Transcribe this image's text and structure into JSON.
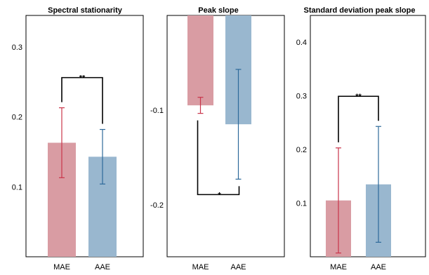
{
  "colors": {
    "MAE": "#d99ca3",
    "AAE": "#99b7cf",
    "MAE_err": "#c9344a",
    "AAE_err": "#2e6a9a"
  },
  "chart_data": [
    {
      "type": "bar",
      "title": "Spectral stationarity",
      "categories": [
        "MAE",
        "AAE"
      ],
      "values": [
        0.163,
        0.143
      ],
      "error": [
        0.05,
        0.039
      ],
      "ylim": [
        0,
        0.345
      ],
      "yticks": [
        0.1,
        0.2,
        0.3
      ],
      "ytick_labels": [
        "0.1",
        "0.2",
        "0.3"
      ],
      "significance": {
        "label": "**",
        "type": "above"
      }
    },
    {
      "type": "bar",
      "title": "Peak slope",
      "categories": [
        "MAE",
        "AAE"
      ],
      "values": [
        -0.095,
        -0.115
      ],
      "error": [
        0.0085,
        0.058
      ],
      "ylim": [
        -0.255,
        -0.0
      ],
      "yticks": [
        -0.1,
        -0.2
      ],
      "ytick_labels": [
        "-0.1",
        "-0.2"
      ],
      "significance": {
        "label": "*",
        "type": "below"
      }
    },
    {
      "type": "bar",
      "title": "Standard deviation peak slope",
      "categories": [
        "MAE",
        "AAE"
      ],
      "values": [
        0.105,
        0.135
      ],
      "error": [
        0.098,
        0.108
      ],
      "ylim": [
        0,
        0.45
      ],
      "yticks": [
        0.1,
        0.2,
        0.3,
        0.4
      ],
      "ytick_labels": [
        "0.1",
        "0.2",
        "0.3",
        "0.4"
      ],
      "significance": {
        "label": "**",
        "type": "above"
      }
    }
  ]
}
